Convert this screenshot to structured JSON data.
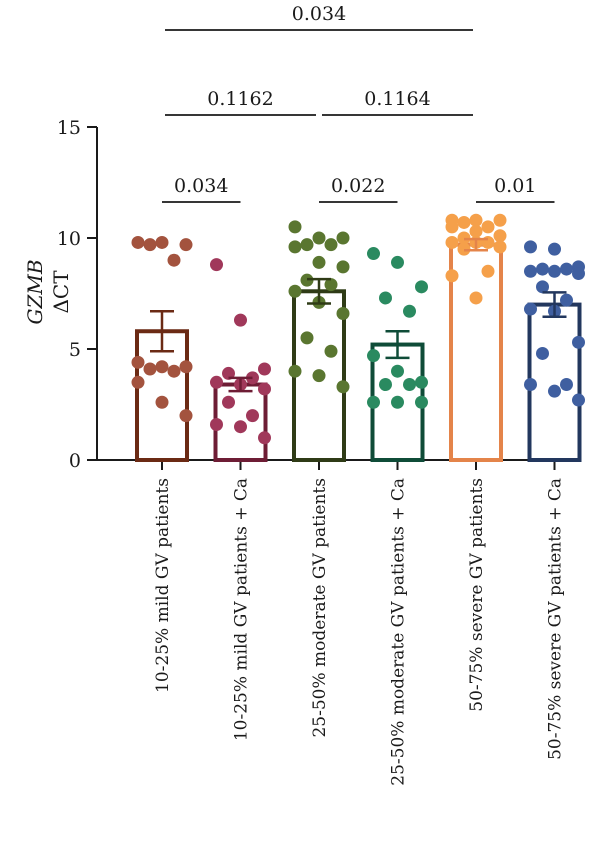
{
  "chart_data": {
    "type": "bar",
    "ylabel_line1": "GZMB",
    "ylabel_line2": "ΔCT",
    "ylim": [
      0,
      15
    ],
    "yticks": [
      "0",
      "5",
      "10",
      "15"
    ],
    "categories": [
      "10-25% mild GV patients",
      "10-25% mild GV patients + Ca",
      "25-50% moderate GV patients",
      "25-50% moderate GV patients + Ca",
      "50-75% severe GV patients",
      "50-75% severe GV patients + Ca"
    ],
    "colors": [
      "#6b2a14",
      "#6e1d35",
      "#2f3b16",
      "#0f4c38",
      "#e4844a",
      "#22375e"
    ],
    "point_colors": [
      "#a3533e",
      "#a0385a",
      "#5a7630",
      "#2a8a60",
      "#f5a04a",
      "#3f5fa0"
    ],
    "means": [
      5.8,
      3.4,
      7.6,
      5.2,
      9.7,
      7.0
    ],
    "sem": [
      0.9,
      0.3,
      0.55,
      0.6,
      0.25,
      0.55
    ],
    "points": [
      [
        9.8,
        9.8,
        9.7,
        9.7,
        9.0,
        4.4,
        4.2,
        4.1,
        4.2,
        4.0,
        3.5,
        2.6,
        2.0
      ],
      [
        8.8,
        6.3,
        4.1,
        3.9,
        3.7,
        3.5,
        3.4,
        3.2,
        2.6,
        2.0,
        1.6,
        1.5,
        1.0
      ],
      [
        10.5,
        10.0,
        10.0,
        9.7,
        9.7,
        9.6,
        8.9,
        8.7,
        8.1,
        7.9,
        7.6,
        7.1,
        6.6,
        5.5,
        4.9,
        4.0,
        3.8,
        3.3
      ],
      [
        9.3,
        8.9,
        7.8,
        7.3,
        6.7,
        4.7,
        4.0,
        3.5,
        3.4,
        3.4,
        2.6,
        2.6,
        2.6
      ],
      [
        10.8,
        10.8,
        10.8,
        10.7,
        10.5,
        10.5,
        10.3,
        10.1,
        10.0,
        9.8,
        9.8,
        9.8,
        9.6,
        9.5,
        8.5,
        8.3,
        7.3
      ],
      [
        9.6,
        9.5,
        8.7,
        8.6,
        8.6,
        8.5,
        8.5,
        8.4,
        7.8,
        7.2,
        6.8,
        6.7,
        5.3,
        4.8,
        3.4,
        3.4,
        3.1,
        2.7
      ]
    ],
    "comparisons": [
      {
        "from": 0,
        "to": 1,
        "label": "0.034",
        "level": 0
      },
      {
        "from": 2,
        "to": 3,
        "label": "0.022",
        "level": 0
      },
      {
        "from": 4,
        "to": 5,
        "label": "0.01",
        "level": 0
      },
      {
        "from": 0,
        "to": 2,
        "label": "0.1162",
        "level": 1
      },
      {
        "from": 2,
        "to": 4,
        "label": "0.1164",
        "level": 1
      },
      {
        "from": 0,
        "to": 4,
        "label": "0.034",
        "level": 2
      }
    ]
  }
}
